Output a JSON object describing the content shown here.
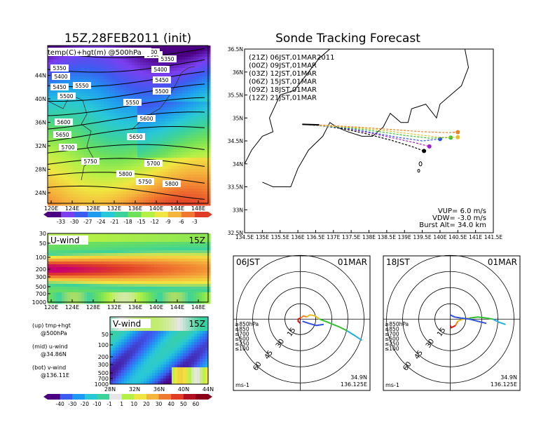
{
  "chart_data": [
    {
      "type": "heatmap",
      "title": "15Z,28FEB2011 (init)",
      "subtitle": "temp(C)+hgt(m) @500hPa",
      "x_ticks": [
        "120E",
        "124E",
        "128E",
        "132E",
        "136E",
        "140E",
        "144E",
        "148E"
      ],
      "y_ticks": [
        "24N",
        "28N",
        "32N",
        "36N",
        "40N",
        "44N"
      ],
      "contour_labels": [
        "5350",
        "5400",
        "5450",
        "5500",
        "5550",
        "5600",
        "5650",
        "5700",
        "5750",
        "5800",
        "5900",
        "5350",
        "5400",
        "5450",
        "5500",
        "5550",
        "5600",
        "5650",
        "5700",
        "5750",
        "5800",
        "5900"
      ],
      "contour_values": [
        5350,
        5400,
        5450,
        5500,
        5550,
        5600,
        5650,
        5700,
        5750,
        5800,
        5900
      ],
      "colorbar": {
        "labels": [
          "-33",
          "-30",
          "-27",
          "-24",
          "-21",
          "-18",
          "-15",
          "-12",
          "-9",
          "-6",
          "-3"
        ],
        "colors": [
          "#4b0082",
          "#7b3ff0",
          "#3c5cf0",
          "#1e9bf0",
          "#28c8d8",
          "#3cd29b",
          "#6ee05a",
          "#b4f046",
          "#f0e641",
          "#f5b43c",
          "#f07830",
          "#e03c28"
        ]
      }
    },
    {
      "type": "heatmap",
      "title": "U-wind",
      "time_label": "15Z",
      "x_ticks": [
        "120E",
        "124E",
        "128E",
        "132E",
        "136E",
        "140E",
        "144E",
        "148E"
      ],
      "y_ticks": [
        "30",
        "50",
        "100",
        "200",
        "300",
        "500",
        "700",
        "1000"
      ]
    },
    {
      "type": "heatmap",
      "title": "V-wind",
      "time_label": "15Z",
      "x_ticks": [
        "28N",
        "32N",
        "36N",
        "40N",
        "44N"
      ],
      "y_ticks": [
        "50",
        "100",
        "200",
        "300",
        "500",
        "700",
        "1000"
      ],
      "colorbar": {
        "labels": [
          "-40",
          "-30",
          "-20",
          "-10",
          "-1",
          "1",
          "10",
          "20",
          "30",
          "40",
          "50",
          "60"
        ],
        "colors": [
          "#4b0082",
          "#3c5cf0",
          "#1e9bf0",
          "#28c8d8",
          "#3cd29b",
          "#e6e6e6",
          "#b4f046",
          "#f0e641",
          "#f5b43c",
          "#f07830",
          "#e03c28",
          "#b01020",
          "#8a0018"
        ]
      }
    },
    {
      "type": "line",
      "title": "Sonde Tracking Forecast",
      "x_ticks": [
        "134.5E",
        "135E",
        "135.5E",
        "136E",
        "136.5E",
        "137E",
        "137.5E",
        "138E",
        "138.5E",
        "139E",
        "139.5E",
        "140E",
        "140.5E",
        "141E",
        "141.5E"
      ],
      "y_ticks": [
        "32.5N",
        "33N",
        "33.5N",
        "34N",
        "34.5N",
        "35N",
        "35.5N",
        "36N",
        "36.5N"
      ],
      "xlim": [
        134.5,
        141.5
      ],
      "ylim": [
        32.5,
        36.5
      ],
      "launch": {
        "lon": 136.125,
        "lat": 34.86
      },
      "series": [
        {
          "name": "(21Z)  06JST,01MAR2011",
          "color": "#000000",
          "lon": [
            136.125,
            136.6,
            137.3,
            137.9,
            138.6,
            139.2,
            139.55
          ],
          "lat": [
            34.86,
            34.84,
            34.76,
            34.66,
            34.52,
            34.38,
            34.28
          ]
        },
        {
          "name": "(00Z)  09JST,01MAR",
          "color": "#a020c0",
          "lon": [
            136.125,
            136.6,
            137.3,
            138.0,
            138.7,
            139.3,
            139.7
          ],
          "lat": [
            34.86,
            34.84,
            34.78,
            34.68,
            34.56,
            34.46,
            34.38
          ]
        },
        {
          "name": "(03Z)  12JST,01MAR",
          "color": "#3050e0",
          "lon": [
            136.125,
            136.6,
            137.4,
            138.1,
            138.8,
            139.5,
            140.0
          ],
          "lat": [
            34.86,
            34.83,
            34.77,
            34.68,
            34.58,
            34.5,
            34.54
          ]
        },
        {
          "name": "(06Z)  15JST,01MAR",
          "color": "#30c030",
          "lon": [
            136.125,
            136.7,
            137.5,
            138.3,
            139.0,
            139.7,
            140.3
          ],
          "lat": [
            34.86,
            34.83,
            34.78,
            34.7,
            34.62,
            34.56,
            34.57
          ]
        },
        {
          "name": "(09Z)  18JST,01MAR",
          "color": "#e0c020",
          "lon": [
            136.125,
            136.7,
            137.6,
            138.5,
            139.3,
            140.0,
            140.5
          ],
          "lat": [
            34.86,
            34.83,
            34.79,
            34.72,
            34.64,
            34.58,
            34.58
          ]
        },
        {
          "name": "(12Z)  21JST,01MAR",
          "color": "#f08020",
          "lon": [
            136.125,
            136.8,
            137.7,
            138.6,
            139.5,
            140.2,
            140.5
          ],
          "lat": [
            34.86,
            34.84,
            34.8,
            34.75,
            34.7,
            34.68,
            34.69
          ]
        }
      ],
      "annotations": [
        "VUP=  6.0  m/s",
        "VDW= -3.0  m/s",
        "Burst Alt=  34.0  km"
      ]
    },
    {
      "type": "line",
      "title": "06JST",
      "date_label": "01MAR",
      "rings": [
        "15",
        "30",
        "45",
        "60"
      ],
      "unit": "ms-1",
      "location": [
        "34.9N",
        "136.125E"
      ],
      "levels": [
        {
          "label": "≥850hPa",
          "color": "#e01010"
        },
        {
          "label": "≤850",
          "color": "#f08020"
        },
        {
          "label": "≤700",
          "color": "#e0c020"
        },
        {
          "label": "≤500",
          "color": "#30c030"
        },
        {
          "label": "≤250",
          "color": "#20b0e0"
        },
        {
          "label": "≤100",
          "color": "#3050e0"
        }
      ],
      "hodograph": [
        {
          "color": "#e01010",
          "u": [
            0,
            -2,
            -2,
            0
          ],
          "v": [
            -4,
            -2,
            0,
            1
          ]
        },
        {
          "color": "#f08020",
          "u": [
            0,
            3,
            6
          ],
          "v": [
            1,
            3,
            2
          ]
        },
        {
          "color": "#e0c020",
          "u": [
            6,
            9,
            14,
            18
          ],
          "v": [
            2,
            4,
            3,
            0
          ]
        },
        {
          "color": "#30c030",
          "u": [
            18,
            26,
            36,
            44
          ],
          "v": [
            0,
            -3,
            -7,
            -11
          ]
        },
        {
          "color": "#20b0e0",
          "u": [
            44,
            52,
            58
          ],
          "v": [
            -11,
            -16,
            -20
          ]
        },
        {
          "color": "#3050e0",
          "u": [
            2,
            8,
            15,
            22
          ],
          "v": [
            -2,
            -4,
            -6,
            -5
          ]
        }
      ]
    },
    {
      "type": "line",
      "title": "18JST",
      "date_label": "01MAR",
      "rings": [
        "15",
        "30",
        "45",
        "60"
      ],
      "unit": "ms-1",
      "location": [
        "34.9N",
        "136.125E"
      ],
      "levels": [
        {
          "label": "≥850hPa",
          "color": "#e01010"
        },
        {
          "label": "≤850",
          "color": "#f08020"
        },
        {
          "label": "≤700",
          "color": "#e0c020"
        },
        {
          "label": "≤500",
          "color": "#30c030"
        },
        {
          "label": "≤250",
          "color": "#20b0e0"
        },
        {
          "label": "≤100",
          "color": "#3050e0"
        }
      ],
      "hodograph": [
        {
          "color": "#e01010",
          "u": [
            0,
            1,
            3,
            5
          ],
          "v": [
            -6,
            -8,
            -7,
            -6
          ]
        },
        {
          "color": "#f08020",
          "u": [
            5,
            7
          ],
          "v": [
            -6,
            -2
          ]
        },
        {
          "color": "#e0c020",
          "u": [
            7,
            12,
            18
          ],
          "v": [
            -2,
            0,
            1
          ]
        },
        {
          "color": "#30c030",
          "u": [
            18,
            26,
            34,
            40
          ],
          "v": [
            1,
            2,
            1,
            0
          ]
        },
        {
          "color": "#20b0e0",
          "u": [
            40,
            46,
            52
          ],
          "v": [
            0,
            -3,
            -5
          ]
        },
        {
          "color": "#3050e0",
          "u": [
            0,
            4,
            10,
            18,
            26,
            34
          ],
          "v": [
            4,
            2,
            1,
            0,
            -2,
            -4
          ]
        }
      ]
    }
  ],
  "side_notes": [
    "(up) tmp+hgt",
    "@500hPa",
    "(mid) u-wind",
    "@34.86N",
    "(bot) v-wind",
    "@136.11E"
  ]
}
